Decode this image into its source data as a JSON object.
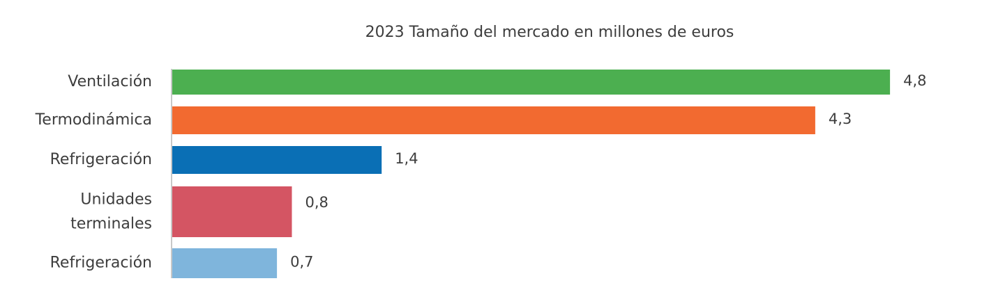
{
  "chart_data": {
    "type": "bar",
    "orientation": "horizontal",
    "title": "2023 Tamaño del mercado en millones de euros",
    "xlabel": "",
    "ylabel": "",
    "grid": false,
    "legend": "none",
    "categories": [
      "Ventilación",
      "Termodinámica",
      "Refrigeración",
      "Unidades terminales",
      "Refrigeración"
    ],
    "values": [
      4.8,
      4.3,
      1.4,
      0.8,
      0.7
    ],
    "value_labels": [
      "4,8",
      "4,3",
      "1,4",
      "0,8",
      "0,7"
    ],
    "colors": [
      "#4caf50",
      "#f26a30",
      "#0a6fb5",
      "#d45563",
      "#7fb5dc"
    ],
    "axis_color": "#c8c8c8"
  }
}
